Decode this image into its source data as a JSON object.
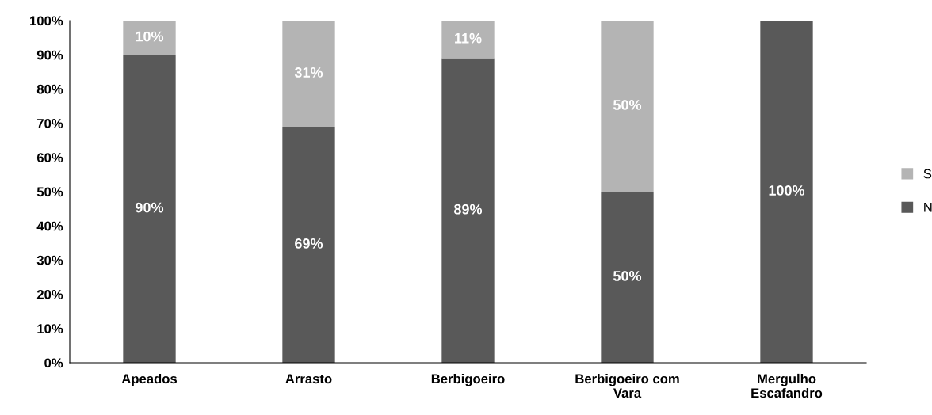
{
  "chart_data": {
    "type": "bar",
    "stacked": true,
    "categories": [
      "Apeados",
      "Arrasto",
      "Berbigoeiro",
      "Berbigoeiro com\nVara",
      "Mergulho\nEscafandro"
    ],
    "series": [
      {
        "name": "N",
        "color": "#595959",
        "values": [
          90,
          69,
          89,
          50,
          100
        ],
        "value_labels": [
          "90%",
          "69%",
          "89%",
          "50%",
          "100%"
        ]
      },
      {
        "name": "S",
        "color": "#b4b4b4",
        "values": [
          10,
          31,
          11,
          50,
          0
        ],
        "value_labels": [
          "10%",
          "31%",
          "11%",
          "50%",
          null
        ]
      }
    ],
    "ylim": [
      0,
      100
    ],
    "yticks": [
      {
        "value": 0,
        "label": "0%"
      },
      {
        "value": 10,
        "label": "10%"
      },
      {
        "value": 20,
        "label": "20%"
      },
      {
        "value": 30,
        "label": "30%"
      },
      {
        "value": 40,
        "label": "40%"
      },
      {
        "value": 50,
        "label": "50%"
      },
      {
        "value": 60,
        "label": "60%"
      },
      {
        "value": 70,
        "label": "70%"
      },
      {
        "value": 80,
        "label": "80%"
      },
      {
        "value": 90,
        "label": "90%"
      },
      {
        "value": 100,
        "label": "100%"
      }
    ],
    "grid": false,
    "legend": "right"
  }
}
